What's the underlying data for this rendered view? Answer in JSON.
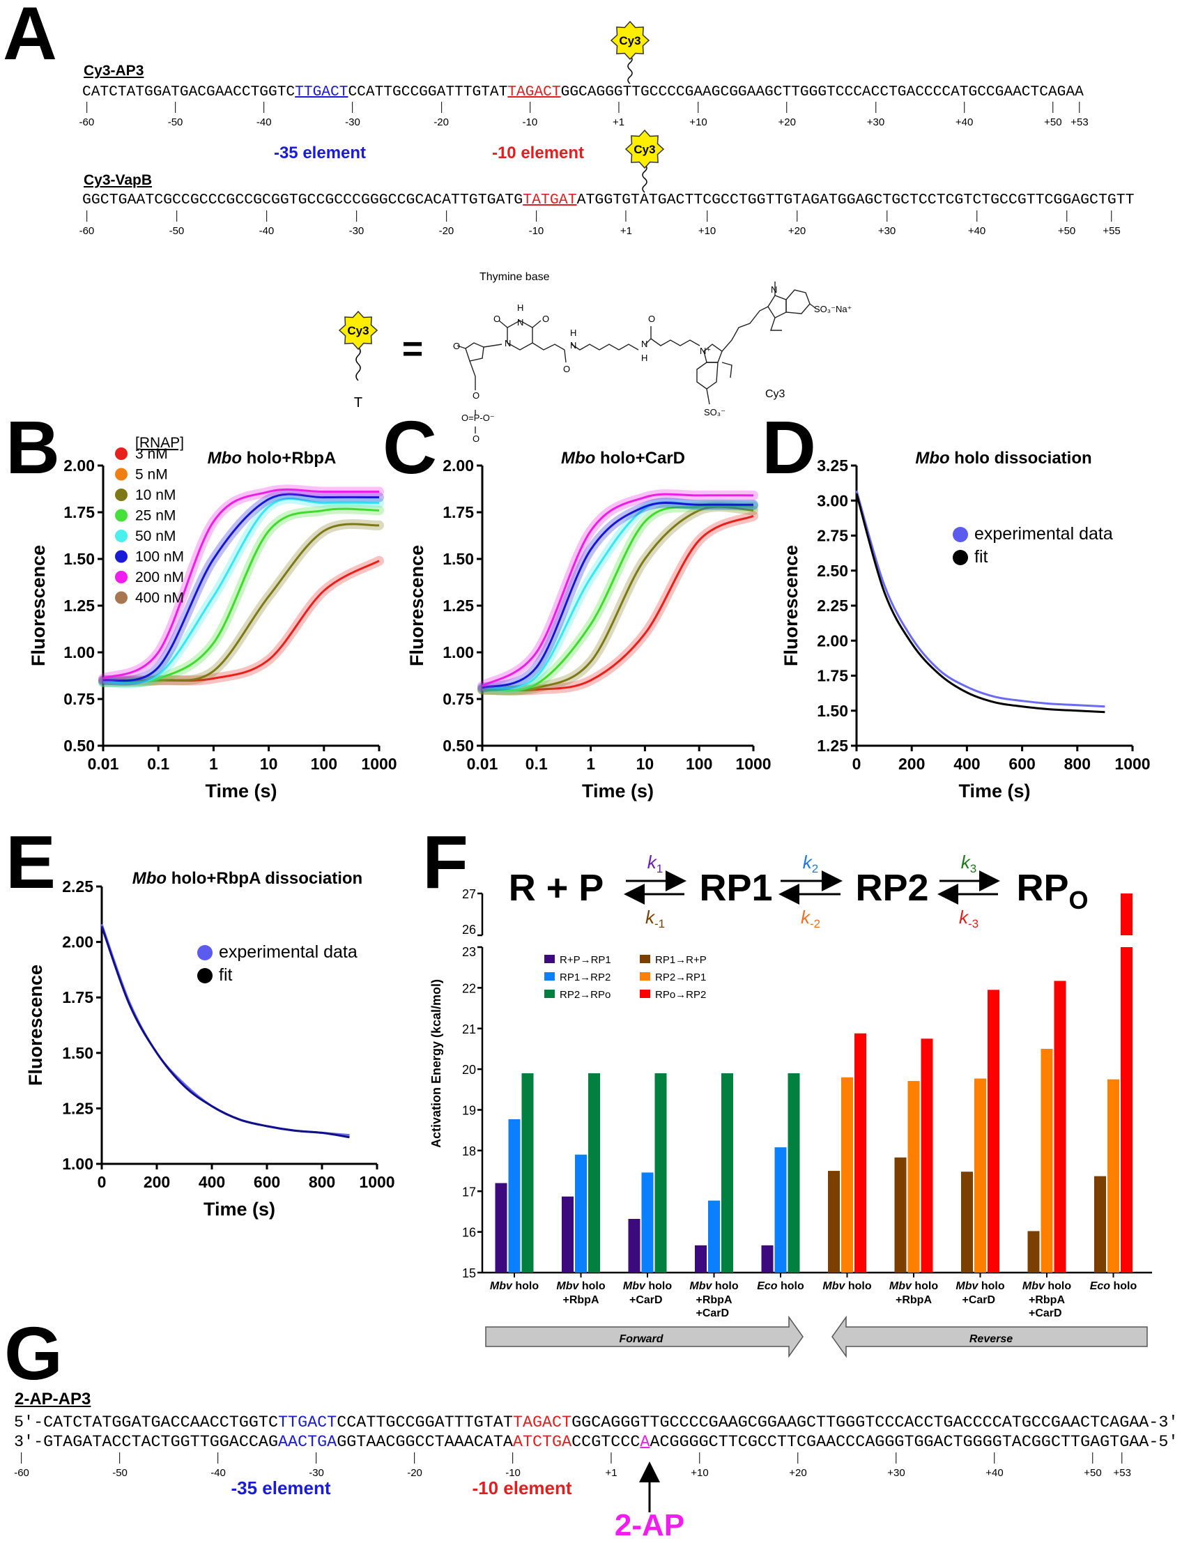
{
  "panel_labels": {
    "a": "A",
    "b": "B",
    "c": "C",
    "d": "D",
    "e": "E",
    "f": "F",
    "g": "G"
  },
  "panel_a": {
    "seq1": {
      "name": "Cy3-AP3",
      "segments": [
        {
          "text": "CATCTATGGATGACGAACCTGGTC",
          "color": "#000000",
          "underline": false
        },
        {
          "text": "TTGACT",
          "color": "#1a1adb",
          "underline": true
        },
        {
          "text": "CCATTGCCGGATTTGTAT",
          "color": "#000000",
          "underline": false
        },
        {
          "text": "TAGACT",
          "color": "#e02020",
          "underline": true
        },
        {
          "text": "GGCAGGGTTGCCCCGAAGCGGAAGCTTGGGTCCCACCTGACCCCATGCCGAACTCAGAA",
          "color": "#000000",
          "underline": false
        }
      ],
      "ticks": [
        "-60",
        "-50",
        "-40",
        "-30",
        "-20",
        "-10",
        "+1",
        "+10",
        "+20",
        "+30",
        "+40",
        "+50",
        "+53"
      ]
    },
    "seq2": {
      "name": "Cy3-VapB",
      "segments": [
        {
          "text": "GGCTGAATCGCCGCCCGCCGCGGTGCCGCCCGGGCCGCACATTGTGATG",
          "color": "#000000",
          "underline": false
        },
        {
          "text": "TATGAT",
          "color": "#e02020",
          "underline": true
        },
        {
          "text": "ATGGTGTATGACTTCGCCTGGTTGTAGATGGAGCTGCTCCTCGTCTGCCGTTCGGAGCTGTT",
          "color": "#000000",
          "underline": false
        }
      ],
      "ticks": [
        "-60",
        "-50",
        "-40",
        "-30",
        "-20",
        "-10",
        "+1",
        "+10",
        "+20",
        "+30",
        "+40",
        "+50",
        "+55"
      ]
    },
    "minus35_label": "-35 element",
    "minus10_label": "-10 element",
    "cy3_tag": "Cy3",
    "structure": {
      "equals": "=",
      "nucleotide_letter": "T",
      "thymine_label": "Thymine base",
      "cy3_label": "Cy3",
      "atoms": [
        "O",
        "N",
        "H",
        "O",
        "N",
        "O",
        "O",
        "O=P-O⁻",
        "O",
        "N",
        "H",
        "O",
        "N",
        "H",
        "O",
        "N⁺",
        "N",
        "SO₃⁻",
        "SO₃⁻Na⁺"
      ]
    }
  },
  "chart_data": [
    {
      "panel": "B",
      "type": "line",
      "title": {
        "italic": "Mbo",
        "rest": " holo+RbpA"
      },
      "xlabel": "Time (s)",
      "ylabel": "Fluorescence",
      "xscale": "log",
      "xlim": [
        0.01,
        1000
      ],
      "ylim": [
        0.5,
        2.0
      ],
      "xticks": [
        "0.01",
        "0.1",
        "1",
        "10",
        "100",
        "1000"
      ],
      "yticks": [
        "0.50",
        "0.75",
        "1.00",
        "1.25",
        "1.50",
        "1.75",
        "2.00"
      ],
      "legend": {
        "title": "[RNAP]",
        "placement": "top-left",
        "entries": [
          {
            "label": "3 nM",
            "color": "#e8201c"
          },
          {
            "label": "5 nM",
            "color": "#f07f12"
          },
          {
            "label": "10 nM",
            "color": "#7d7a15"
          },
          {
            "label": "25 nM",
            "color": "#46e03a"
          },
          {
            "label": "50 nM",
            "color": "#49f0ee"
          },
          {
            "label": "100 nM",
            "color": "#1a1ad9"
          },
          {
            "label": "200 nM",
            "color": "#f01cf0"
          },
          {
            "label": "400 nM",
            "color": "#a8764f"
          }
        ]
      },
      "x": [
        0.01,
        0.1,
        1,
        10,
        100,
        1000
      ],
      "series": [
        {
          "name": "3 nM",
          "color": "#e8201c",
          "values": [
            0.85,
            0.85,
            0.86,
            0.96,
            1.33,
            1.49
          ]
        },
        {
          "name": "10 nM",
          "color": "#7d7a15",
          "values": [
            0.84,
            0.85,
            0.9,
            1.3,
            1.65,
            1.68
          ]
        },
        {
          "name": "25 nM",
          "color": "#3fdc2c",
          "values": [
            0.84,
            0.86,
            1.05,
            1.65,
            1.76,
            1.76
          ]
        },
        {
          "name": "50 nM",
          "color": "#37e8f0",
          "values": [
            0.84,
            0.88,
            1.3,
            1.78,
            1.8,
            1.8
          ]
        },
        {
          "name": "100 nM",
          "color": "#1616d6",
          "values": [
            0.85,
            0.92,
            1.5,
            1.82,
            1.83,
            1.83
          ]
        },
        {
          "name": "200 nM",
          "color": "#ee1ee6",
          "values": [
            0.86,
            1.0,
            1.7,
            1.86,
            1.86,
            1.86
          ]
        }
      ]
    },
    {
      "panel": "C",
      "type": "line",
      "title": {
        "italic": "Mbo",
        "rest": " holo+CarD"
      },
      "xlabel": "Time (s)",
      "ylabel": "Fluorescence",
      "xscale": "log",
      "xlim": [
        0.01,
        1000
      ],
      "ylim": [
        0.5,
        2.0
      ],
      "xticks": [
        "0.01",
        "0.1",
        "1",
        "10",
        "100",
        "1000"
      ],
      "yticks": [
        "0.50",
        "0.75",
        "1.00",
        "1.25",
        "1.50",
        "1.75",
        "2.00"
      ],
      "x": [
        0.01,
        0.1,
        1,
        10,
        100,
        1000
      ],
      "series": [
        {
          "name": "3 nM",
          "color": "#e8201c",
          "values": [
            0.8,
            0.8,
            0.85,
            1.1,
            1.6,
            1.73
          ]
        },
        {
          "name": "10 nM",
          "color": "#7d7a15",
          "values": [
            0.8,
            0.81,
            0.95,
            1.5,
            1.76,
            1.76
          ]
        },
        {
          "name": "25 nM",
          "color": "#3fdc2c",
          "values": [
            0.8,
            0.83,
            1.15,
            1.7,
            1.78,
            1.78
          ]
        },
        {
          "name": "50 nM",
          "color": "#37e8f0",
          "values": [
            0.81,
            0.87,
            1.4,
            1.77,
            1.79,
            1.79
          ]
        },
        {
          "name": "100 nM",
          "color": "#1616d6",
          "values": [
            0.81,
            0.92,
            1.55,
            1.78,
            1.79,
            1.79
          ]
        },
        {
          "name": "200 nM",
          "color": "#ee1ee6",
          "values": [
            0.82,
            1.0,
            1.65,
            1.83,
            1.84,
            1.84
          ]
        }
      ]
    },
    {
      "panel": "D",
      "type": "line",
      "title": {
        "italic": "Mbo",
        "rest": " holo dissociation"
      },
      "xlabel": "Time (s)",
      "ylabel": "Fluorescence",
      "xscale": "linear",
      "xlim": [
        0,
        1000
      ],
      "ylim": [
        1.25,
        3.25
      ],
      "xticks": [
        "0",
        "200",
        "400",
        "600",
        "800",
        "1000"
      ],
      "yticks": [
        "1.25",
        "1.50",
        "1.75",
        "2.00",
        "2.25",
        "2.50",
        "2.75",
        "3.00",
        "3.25"
      ],
      "legend": {
        "placement": "top-right",
        "entries": [
          {
            "label": "experimental data",
            "color": "#5b5bf0"
          },
          {
            "label": "fit",
            "color": "#000000"
          }
        ]
      },
      "x": [
        0,
        100,
        200,
        300,
        400,
        500,
        600,
        700,
        800,
        900
      ],
      "series": [
        {
          "name": "experimental data",
          "color": "#6a6af2",
          "values": [
            3.07,
            2.4,
            2.02,
            1.79,
            1.67,
            1.6,
            1.57,
            1.55,
            1.54,
            1.53
          ]
        },
        {
          "name": "fit",
          "color": "#000000",
          "values": [
            3.05,
            2.35,
            1.98,
            1.76,
            1.63,
            1.56,
            1.53,
            1.51,
            1.5,
            1.49
          ]
        }
      ]
    },
    {
      "panel": "E",
      "type": "line",
      "title": {
        "italic": "Mbo",
        "rest": " holo+RbpA dissociation"
      },
      "xlabel": "Time (s)",
      "ylabel": "Fluorescence",
      "xscale": "linear",
      "xlim": [
        0,
        1000
      ],
      "ylim": [
        1.0,
        2.25
      ],
      "xticks": [
        "0",
        "200",
        "400",
        "600",
        "800",
        "1000"
      ],
      "yticks": [
        "1.00",
        "1.25",
        "1.50",
        "1.75",
        "2.00",
        "2.25"
      ],
      "legend": {
        "placement": "top-right",
        "entries": [
          {
            "label": "experimental data",
            "color": "#5b5bf0"
          },
          {
            "label": "fit",
            "color": "#000000"
          }
        ]
      },
      "x": [
        0,
        100,
        200,
        300,
        400,
        500,
        600,
        700,
        800,
        900
      ],
      "series": [
        {
          "name": "experimental data",
          "color": "#6a6af2",
          "values": [
            2.08,
            1.73,
            1.5,
            1.36,
            1.26,
            1.2,
            1.17,
            1.15,
            1.14,
            1.13
          ]
        },
        {
          "name": "fit",
          "color": "#10108a",
          "values": [
            2.07,
            1.72,
            1.5,
            1.35,
            1.26,
            1.2,
            1.17,
            1.15,
            1.14,
            1.12
          ]
        }
      ]
    },
    {
      "panel": "F",
      "type": "bar",
      "ylabel": "Activation Energy (kcal/mol)",
      "ylim": [
        15,
        27
      ],
      "axis_break": [
        23,
        26
      ],
      "yticks": [
        "15",
        "16",
        "17",
        "18",
        "19",
        "20",
        "21",
        "22",
        "23",
        "26",
        "27"
      ],
      "scheme": {
        "species": [
          "R + P",
          "RP1",
          "RP2",
          "RP"
        ],
        "rpo_subscript": "O",
        "rates": [
          {
            "label": "k",
            "sub": "1",
            "color": "#6a1fb0"
          },
          {
            "label": "k",
            "sub": "-1",
            "color": "#7b3f00"
          },
          {
            "label": "k",
            "sub": "2",
            "color": "#1a7ae0"
          },
          {
            "label": "k",
            "sub": "-2",
            "color": "#f07020"
          },
          {
            "label": "k",
            "sub": "3",
            "color": "#1a7a1a"
          },
          {
            "label": "k",
            "sub": "-3",
            "color": "#e81a1a"
          }
        ]
      },
      "legend": {
        "placement": "top-left",
        "entries": [
          {
            "label": "R+P→RP1",
            "color": "#3d0a7e"
          },
          {
            "label": "RP1→RP2",
            "color": "#0a80ff"
          },
          {
            "label": "RP2→RPo",
            "color": "#028040"
          },
          {
            "label": "RP1→R+P",
            "color": "#7b3f00"
          },
          {
            "label": "RP2→RP1",
            "color": "#ff8000"
          },
          {
            "label": "RPo→RP2",
            "color": "#ff0000"
          }
        ]
      },
      "categories": [
        {
          "species": "Mbv",
          "name": " holo",
          "extra": []
        },
        {
          "species": "Mbv",
          "name": " holo",
          "extra": [
            "+RbpA"
          ]
        },
        {
          "species": "Mbv",
          "name": " holo",
          "extra": [
            "+CarD"
          ]
        },
        {
          "species": "Mbv",
          "name": " holo",
          "extra": [
            "+RbpA",
            "+CarD"
          ]
        },
        {
          "species": "Eco",
          "name": " holo",
          "extra": []
        },
        {
          "species": "Mbv",
          "name": " holo",
          "extra": []
        },
        {
          "species": "Mbv",
          "name": " holo",
          "extra": [
            "+RbpA"
          ]
        },
        {
          "species": "Mbv",
          "name": " holo",
          "extra": [
            "+CarD"
          ]
        },
        {
          "species": "Mbv",
          "name": " holo",
          "extra": [
            "+RbpA",
            "+CarD"
          ]
        },
        {
          "species": "Eco",
          "name": " holo",
          "extra": []
        }
      ],
      "series": [
        {
          "name": "R+P→RP1",
          "color": "#3d0a7e",
          "values": [
            17.2,
            16.87,
            16.32,
            15.67,
            15.67,
            null,
            null,
            null,
            null,
            null
          ]
        },
        {
          "name": "RP1→RP2",
          "color": "#0a80ff",
          "values": [
            18.77,
            17.9,
            17.46,
            16.77,
            18.08,
            null,
            null,
            null,
            null,
            null
          ]
        },
        {
          "name": "RP2→RPo",
          "color": "#028040",
          "values": [
            19.9,
            19.9,
            19.9,
            19.9,
            19.9,
            null,
            null,
            null,
            null,
            null
          ]
        },
        {
          "name": "RP1→R+P",
          "color": "#7b3f00",
          "values": [
            null,
            null,
            null,
            null,
            null,
            17.5,
            17.83,
            17.48,
            16.02,
            17.37
          ]
        },
        {
          "name": "RP2→RP1",
          "color": "#ff8000",
          "values": [
            null,
            null,
            null,
            null,
            null,
            19.8,
            19.71,
            19.77,
            20.5,
            19.75
          ]
        },
        {
          "name": "RPo→RP2",
          "color": "#ff0000",
          "values": [
            null,
            null,
            null,
            null,
            null,
            20.88,
            20.75,
            21.95,
            22.17,
            27.0
          ]
        }
      ],
      "direction_arrows": [
        "Forward",
        "Reverse"
      ]
    }
  ],
  "panel_g": {
    "name": "2-AP-AP3",
    "top": [
      {
        "text": "5′-CATCTATGGATGACCAACCTGGTC",
        "color": "#000000",
        "underline": false
      },
      {
        "text": "TTGACT",
        "color": "#1a1adb",
        "underline": false
      },
      {
        "text": "CCATTGCCGGATTTGTAT",
        "color": "#000000",
        "underline": false
      },
      {
        "text": "TAGACT",
        "color": "#e02020",
        "underline": false
      },
      {
        "text": "GGCAGGGTTGCCCCGAAGCGGAAGCTTGGGTCCCACCTGACCCCATGCCGAACTCAGAA-3′",
        "color": "#000000",
        "underline": false
      }
    ],
    "bottom": [
      {
        "text": "3′-GTAGATACCTACTGGTTGGACCAG",
        "color": "#000000",
        "underline": false
      },
      {
        "text": "AACTGA",
        "color": "#1a1adb",
        "underline": false
      },
      {
        "text": "GGTAACGGCCTAAACATA",
        "color": "#000000",
        "underline": false
      },
      {
        "text": "ATCTGA",
        "color": "#e02020",
        "underline": false
      },
      {
        "text": "CCGTCCC",
        "color": "#000000",
        "underline": false
      },
      {
        "text": "A",
        "color": "#f01cf0",
        "underline": true
      },
      {
        "text": "ACGGGGCTTCGCCTTCGAACCCAGGGTGGACTGGGGTACGGCTTGAGTGAA-5′",
        "color": "#000000",
        "underline": false
      }
    ],
    "ticks": [
      "-60",
      "-50",
      "-40",
      "-30",
      "-20",
      "-10",
      "+1",
      "+10",
      "+20",
      "+30",
      "+40",
      "+50",
      "+53"
    ],
    "minus35_label": "-35 element",
    "minus10_label": "-10 element",
    "marker_label": "2-AP",
    "marker_color": "#f01cf0"
  }
}
